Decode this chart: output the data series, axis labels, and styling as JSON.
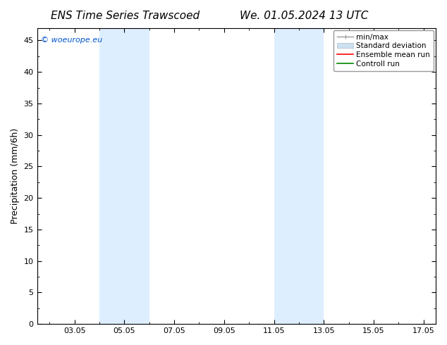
{
  "title_left": "ENS Time Series Trawscoed",
  "title_right": "We. 01.05.2024 13 UTC",
  "ylabel": "Precipitation (mm/6h)",
  "watermark": "© woeurope.eu",
  "watermark_color": "#0055cc",
  "xlim": [
    1.5,
    17.5
  ],
  "ylim": [
    0,
    47
  ],
  "yticks": [
    0,
    5,
    10,
    15,
    20,
    25,
    30,
    35,
    40,
    45
  ],
  "xtick_labels": [
    "03.05",
    "05.05",
    "07.05",
    "09.05",
    "11.05",
    "13.05",
    "15.05",
    "17.05"
  ],
  "xtick_positions": [
    3,
    5,
    7,
    9,
    11,
    13,
    15,
    17
  ],
  "shaded_regions": [
    {
      "x_start": 4.0,
      "x_end": 6.0
    },
    {
      "x_start": 11.0,
      "x_end": 13.0
    }
  ],
  "shade_color": "#ddeeff",
  "background_color": "#ffffff",
  "legend_items": [
    {
      "label": "min/max",
      "color": "#999999",
      "lw": 1.0
    },
    {
      "label": "Standard deviation",
      "color": "#cce0f0",
      "lw": 8
    },
    {
      "label": "Ensemble mean run",
      "color": "#ff0000",
      "lw": 1.2
    },
    {
      "label": "Controll run",
      "color": "#008800",
      "lw": 1.2
    }
  ],
  "title_fontsize": 11,
  "axis_fontsize": 9,
  "tick_fontsize": 8,
  "legend_fontsize": 7.5,
  "watermark_fontsize": 8
}
